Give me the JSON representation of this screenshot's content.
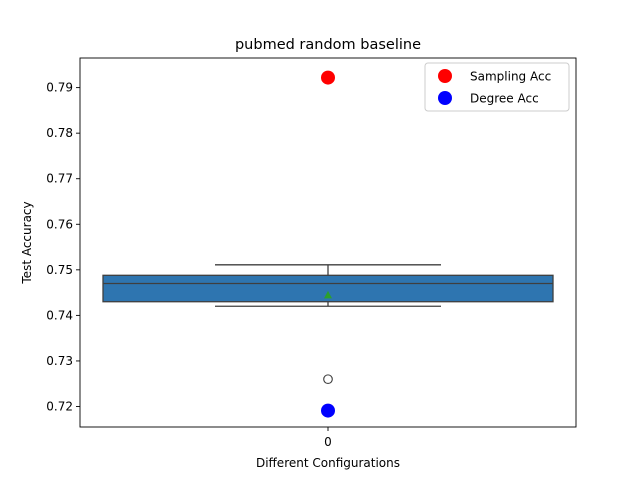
{
  "chart_data": {
    "type": "box",
    "title": "pubmed random baseline",
    "xlabel": "Different Configurations",
    "ylabel": "Test Accuracy",
    "categories": [
      "0"
    ],
    "ylim": [
      0.7155,
      0.7965
    ],
    "yticks": [
      0.72,
      0.73,
      0.74,
      0.75,
      0.76,
      0.77,
      0.78,
      0.79
    ],
    "ytick_labels": [
      "0.72",
      "0.73",
      "0.74",
      "0.75",
      "0.76",
      "0.77",
      "0.78",
      "0.79"
    ],
    "box": {
      "whisker_low": 0.742,
      "q1": 0.743,
      "median": 0.747,
      "q3": 0.7488,
      "whisker_high": 0.7511,
      "mean": 0.7444,
      "outliers": [
        0.726
      ],
      "color": "#2e75b0",
      "mean_color": "#2ca02c"
    },
    "points": [
      {
        "name": "Sampling Acc",
        "x": "0",
        "y": 0.7922,
        "color": "#ff0000"
      },
      {
        "name": "Degree Acc",
        "x": "0",
        "y": 0.7191,
        "color": "#0000ff"
      }
    ],
    "legend": {
      "position": "top-right",
      "entries": [
        {
          "label": "Sampling Acc",
          "color": "#ff0000"
        },
        {
          "label": "Degree Acc",
          "color": "#0000ff"
        }
      ]
    },
    "grid": false
  }
}
